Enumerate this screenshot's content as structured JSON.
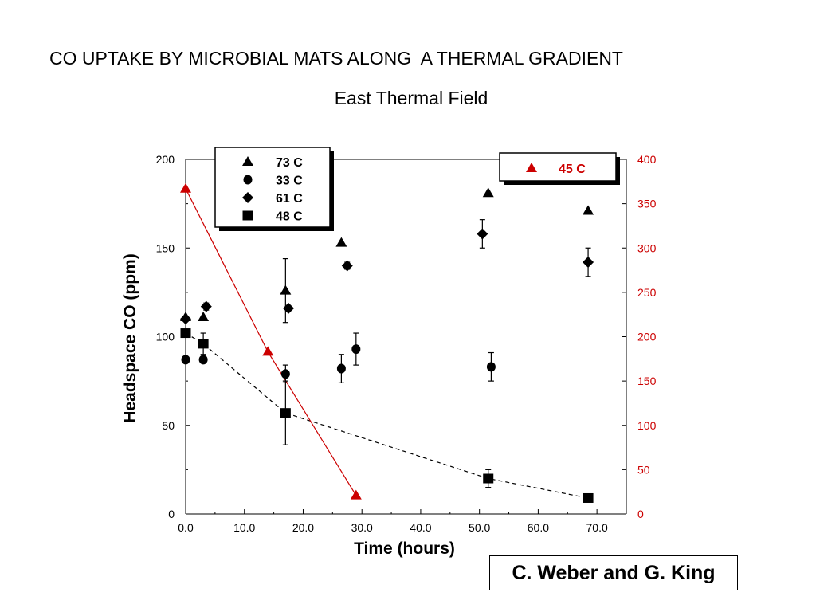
{
  "title": "CO UPTAKE BY MICROBIAL MATS ALONG  A THERMAL GRADIENT",
  "subtitle": "East Thermal Field",
  "credit": "C. Weber and G. King",
  "colors": {
    "axis": "#000000",
    "right_axis": "#cc0000",
    "series_45": "#cc0000"
  },
  "chart_data": {
    "type": "scatter",
    "xlabel": "Time (hours)",
    "ylabel": "Headspace CO (ppm)",
    "xlim": [
      0,
      75
    ],
    "ylim": [
      0,
      200
    ],
    "y2lim": [
      0,
      400
    ],
    "x_ticks": [
      "0.0",
      "10.0",
      "20.0",
      "30.0",
      "40.0",
      "50.0",
      "60.0",
      "70.0"
    ],
    "x_tick_values": [
      0,
      10,
      20,
      30,
      40,
      50,
      60,
      70
    ],
    "y_ticks": [
      "0",
      "50",
      "100",
      "150",
      "200"
    ],
    "y_tick_values": [
      0,
      50,
      100,
      150,
      200
    ],
    "y2_ticks": [
      "0",
      "50",
      "100",
      "150",
      "200",
      "250",
      "300",
      "350",
      "400"
    ],
    "y2_tick_values": [
      0,
      50,
      100,
      150,
      200,
      250,
      300,
      350,
      400
    ],
    "legend_left": {
      "placement": "top-left",
      "entries": [
        {
          "label": "73 C",
          "marker": "triangle"
        },
        {
          "label": "33 C",
          "marker": "circle"
        },
        {
          "label": "61 C",
          "marker": "diamond"
        },
        {
          "label": "48 C",
          "marker": "square"
        }
      ]
    },
    "legend_right": {
      "placement": "top-right",
      "entries": [
        {
          "label": "45 C",
          "marker": "triangle"
        }
      ]
    },
    "series": [
      {
        "name": "73 C",
        "marker": "triangle",
        "axis": "left",
        "color": "#000000",
        "line": false,
        "points": [
          {
            "x": 0,
            "y": 111
          },
          {
            "x": 3,
            "y": 111
          },
          {
            "x": 17,
            "y": 126,
            "err": 18
          },
          {
            "x": 26.5,
            "y": 153
          },
          {
            "x": 51.5,
            "y": 181
          },
          {
            "x": 68.5,
            "y": 171
          }
        ]
      },
      {
        "name": "33 C",
        "marker": "circle",
        "axis": "left",
        "color": "#000000",
        "line": false,
        "points": [
          {
            "x": 0,
            "y": 87
          },
          {
            "x": 3,
            "y": 87
          },
          {
            "x": 17,
            "y": 79,
            "err": 5
          },
          {
            "x": 26.5,
            "y": 82,
            "err": 8
          },
          {
            "x": 29,
            "y": 93,
            "err": 9
          },
          {
            "x": 52,
            "y": 83,
            "err": 8
          }
        ]
      },
      {
        "name": "61 C",
        "marker": "diamond",
        "axis": "left",
        "color": "#000000",
        "line": false,
        "points": [
          {
            "x": 0,
            "y": 110
          },
          {
            "x": 3.5,
            "y": 117,
            "err": 2
          },
          {
            "x": 17.5,
            "y": 116
          },
          {
            "x": 27.5,
            "y": 140,
            "err": 2
          },
          {
            "x": 50.5,
            "y": 158,
            "err": 8
          },
          {
            "x": 68.5,
            "y": 142,
            "err": 8
          }
        ]
      },
      {
        "name": "48 C",
        "marker": "square",
        "axis": "left",
        "color": "#000000",
        "line": "dashed",
        "points": [
          {
            "x": 0,
            "y": 102
          },
          {
            "x": 3,
            "y": 96,
            "err": 6
          },
          {
            "x": 17,
            "y": 57,
            "err": 18
          },
          {
            "x": 51.5,
            "y": 20,
            "err": 5
          },
          {
            "x": 68.5,
            "y": 9
          }
        ]
      },
      {
        "name": "45 C",
        "marker": "triangle",
        "axis": "right",
        "color": "#cc0000",
        "line": "solid",
        "points": [
          {
            "x": 0,
            "y": 367
          },
          {
            "x": 14,
            "y": 183
          },
          {
            "x": 29,
            "y": 21
          }
        ]
      }
    ]
  }
}
